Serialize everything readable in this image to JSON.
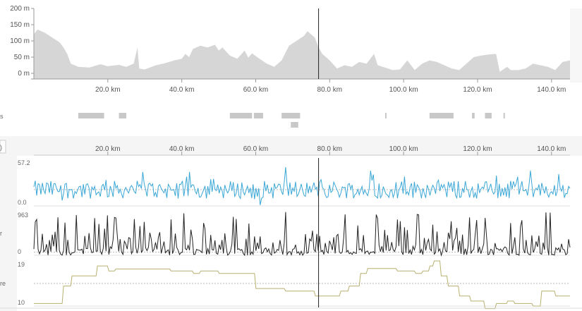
{
  "elevation": {
    "y_ticks": [
      "200 m",
      "150 m",
      "100 m",
      "50 m",
      "0 m"
    ],
    "x_ticks": [
      "20.0 km",
      "40.0 km",
      "60.0 km",
      "80.0 km",
      "100.0 km",
      "120.0 km",
      "140.0 km"
    ]
  },
  "segments_row": {
    "left_label": "s",
    "segments_km": [
      [
        12,
        19
      ],
      [
        23,
        25
      ],
      [
        53,
        59
      ],
      [
        59.5,
        62
      ],
      [
        67,
        72
      ],
      [
        69.5,
        71.5
      ],
      [
        95,
        95.3
      ],
      [
        107,
        113.5
      ],
      [
        118.5,
        119.2
      ],
      [
        122,
        123.8
      ],
      [
        127,
        127.4
      ]
    ]
  },
  "distance_axis": {
    "x_ticks": [
      "20.0 km",
      "40.0 km",
      "60.0 km",
      "80.0 km",
      "100.0 km",
      "120.0 km",
      "140.0 km"
    ],
    "left_button_glyph": ")"
  },
  "metrics": [
    {
      "name": "speed",
      "left_label": "",
      "max_label": "57.2",
      "min_label": "0.0",
      "color": "#3aa7d6"
    },
    {
      "name": "power",
      "left_label": "r",
      "max_label": "963",
      "min_label": "0",
      "color": "#222222"
    },
    {
      "name": "temperature",
      "left_label": "re",
      "max_label": "19",
      "min_label": "10",
      "color": "#b8b070"
    }
  ],
  "cursor": {
    "km": 77
  }
}
